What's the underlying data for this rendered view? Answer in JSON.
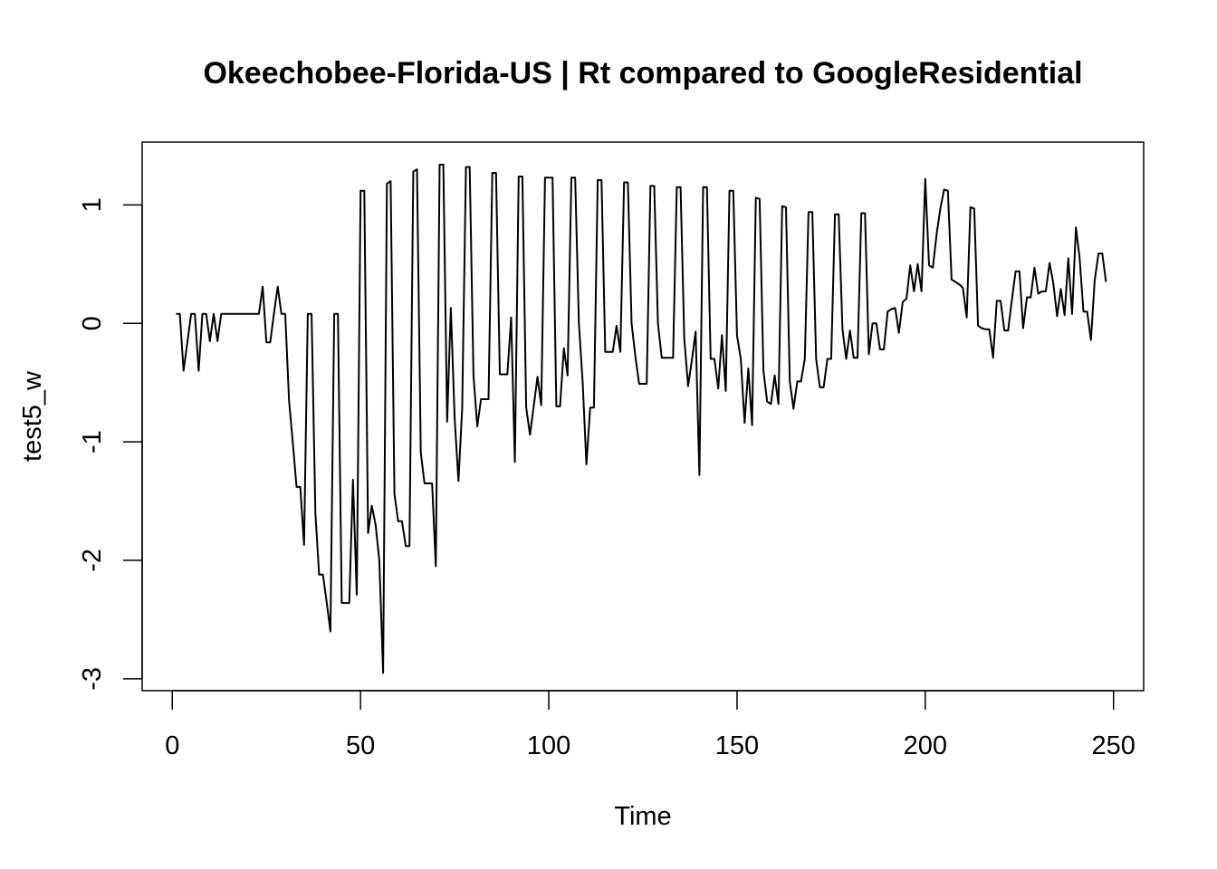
{
  "chart_data": {
    "type": "line",
    "title": "Okeechobee-Florida-US | Rt compared to GoogleResidential",
    "xlabel": "Time",
    "ylabel": "test5_w",
    "xlim": [
      -8,
      258
    ],
    "ylim": [
      -3.1,
      1.53
    ],
    "xticks": [
      0,
      50,
      100,
      150,
      200,
      250
    ],
    "yticks": [
      -3,
      -2,
      -1,
      0,
      1
    ],
    "grid": false,
    "series": [
      {
        "name": "test5_w",
        "x": [
          1,
          2,
          3,
          5,
          6,
          7,
          8,
          9,
          10,
          11,
          12,
          13,
          14,
          16,
          18,
          20,
          22,
          23,
          24,
          25,
          26,
          27,
          28,
          29,
          30,
          31,
          32,
          33,
          34,
          35,
          36,
          37,
          38,
          39,
          40,
          41,
          42,
          43,
          44,
          45,
          46,
          47,
          48,
          49,
          50,
          51,
          52,
          53,
          54,
          55,
          56,
          57,
          58,
          59,
          60,
          61,
          62,
          63,
          64,
          65,
          66,
          67,
          68,
          69,
          70,
          71,
          72,
          73,
          74,
          75,
          76,
          77,
          78,
          79,
          80,
          81,
          82,
          83,
          84,
          85,
          86,
          87,
          88,
          89,
          90,
          91,
          92,
          93,
          94,
          95,
          96,
          97,
          98,
          99,
          100,
          101,
          102,
          103,
          104,
          105,
          106,
          107,
          108,
          109,
          110,
          111,
          112,
          113,
          114,
          115,
          116,
          117,
          118,
          119,
          120,
          121,
          122,
          123,
          124,
          125,
          126,
          127,
          128,
          129,
          130,
          131,
          132,
          133,
          134,
          135,
          136,
          137,
          138,
          139,
          140,
          141,
          142,
          143,
          144,
          145,
          146,
          147,
          148,
          149,
          150,
          151,
          152,
          153,
          154,
          155,
          156,
          157,
          158,
          159,
          160,
          161,
          162,
          163,
          164,
          165,
          166,
          167,
          168,
          169,
          170,
          171,
          172,
          173,
          174,
          175,
          176,
          177,
          178,
          179,
          180,
          181,
          182,
          183,
          184,
          185,
          186,
          187,
          188,
          189,
          190,
          191,
          192,
          193,
          194,
          195,
          196,
          197,
          198,
          199,
          200,
          201,
          202,
          203,
          204,
          205,
          206,
          207,
          208,
          209,
          210,
          211,
          212,
          213,
          214,
          215,
          216,
          217,
          218,
          219,
          220,
          221,
          222,
          223,
          224,
          225,
          226,
          227,
          228,
          229,
          230,
          231,
          232,
          233,
          234,
          235,
          236,
          237,
          238,
          239,
          240,
          241,
          242,
          243,
          244,
          245,
          246,
          247,
          248
        ],
        "values": [
          0.08,
          0.08,
          -0.4,
          0.08,
          0.08,
          -0.4,
          0.08,
          0.08,
          -0.15,
          0.08,
          -0.15,
          0.08,
          0.08,
          0.08,
          0.08,
          0.08,
          0.08,
          0.08,
          0.31,
          -0.16,
          -0.16,
          0.08,
          0.31,
          0.08,
          0.08,
          -0.65,
          -1.0,
          -1.38,
          -1.38,
          -1.87,
          0.08,
          0.08,
          -1.6,
          -2.12,
          -2.12,
          -2.35,
          -2.6,
          0.08,
          0.08,
          -2.36,
          -2.36,
          -2.36,
          -1.32,
          -2.29,
          1.12,
          1.12,
          -1.77,
          -1.54,
          -1.7,
          -2.0,
          -2.95,
          1.18,
          1.2,
          -1.44,
          -1.67,
          -1.67,
          -1.88,
          -1.88,
          1.28,
          1.3,
          -1.09,
          -1.35,
          -1.35,
          -1.35,
          -2.05,
          1.34,
          1.34,
          -0.83,
          0.13,
          -0.8,
          -1.33,
          -0.72,
          1.32,
          1.32,
          -0.44,
          -0.87,
          -0.64,
          -0.64,
          -0.64,
          1.27,
          1.27,
          -0.43,
          -0.43,
          -0.43,
          0.05,
          -1.17,
          1.24,
          1.24,
          -0.71,
          -0.94,
          -0.7,
          -0.45,
          -0.69,
          1.23,
          1.23,
          1.23,
          -0.7,
          -0.7,
          -0.21,
          -0.44,
          1.23,
          1.23,
          0.0,
          -0.5,
          -1.19,
          -0.71,
          -0.71,
          1.21,
          1.21,
          -0.24,
          -0.24,
          -0.24,
          -0.02,
          -0.24,
          1.19,
          1.19,
          0.0,
          -0.28,
          -0.51,
          -0.51,
          -0.51,
          1.16,
          1.16,
          0.0,
          -0.29,
          -0.29,
          -0.29,
          -0.29,
          1.15,
          1.15,
          -0.13,
          -0.53,
          -0.31,
          -0.07,
          -1.28,
          1.15,
          1.15,
          -0.3,
          -0.3,
          -0.55,
          -0.1,
          -0.57,
          1.12,
          1.12,
          -0.1,
          -0.3,
          -0.84,
          -0.38,
          -0.86,
          1.06,
          1.05,
          -0.4,
          -0.66,
          -0.68,
          -0.44,
          -0.68,
          0.99,
          0.98,
          -0.49,
          -0.72,
          -0.49,
          -0.49,
          -0.3,
          0.94,
          0.94,
          -0.3,
          -0.54,
          -0.54,
          -0.3,
          -0.3,
          0.92,
          0.92,
          -0.05,
          -0.3,
          -0.06,
          -0.29,
          -0.29,
          0.93,
          0.93,
          -0.26,
          0.0,
          0.0,
          -0.22,
          -0.22,
          0.1,
          0.12,
          0.13,
          -0.08,
          0.18,
          0.21,
          0.49,
          0.27,
          0.5,
          0.27,
          1.22,
          0.49,
          0.47,
          0.75,
          0.97,
          1.13,
          1.12,
          0.37,
          0.35,
          0.33,
          0.3,
          0.05,
          0.98,
          0.97,
          -0.02,
          -0.04,
          -0.05,
          -0.05,
          -0.29,
          0.19,
          0.19,
          -0.06,
          -0.06,
          0.2,
          0.44,
          0.44,
          -0.04,
          0.22,
          0.22,
          0.47,
          0.25,
          0.27,
          0.27,
          0.51,
          0.34,
          0.06,
          0.29,
          0.07,
          0.55,
          0.08,
          0.81,
          0.55,
          0.1,
          0.1,
          -0.14,
          0.36,
          0.59,
          0.59,
          0.35
        ]
      }
    ]
  }
}
